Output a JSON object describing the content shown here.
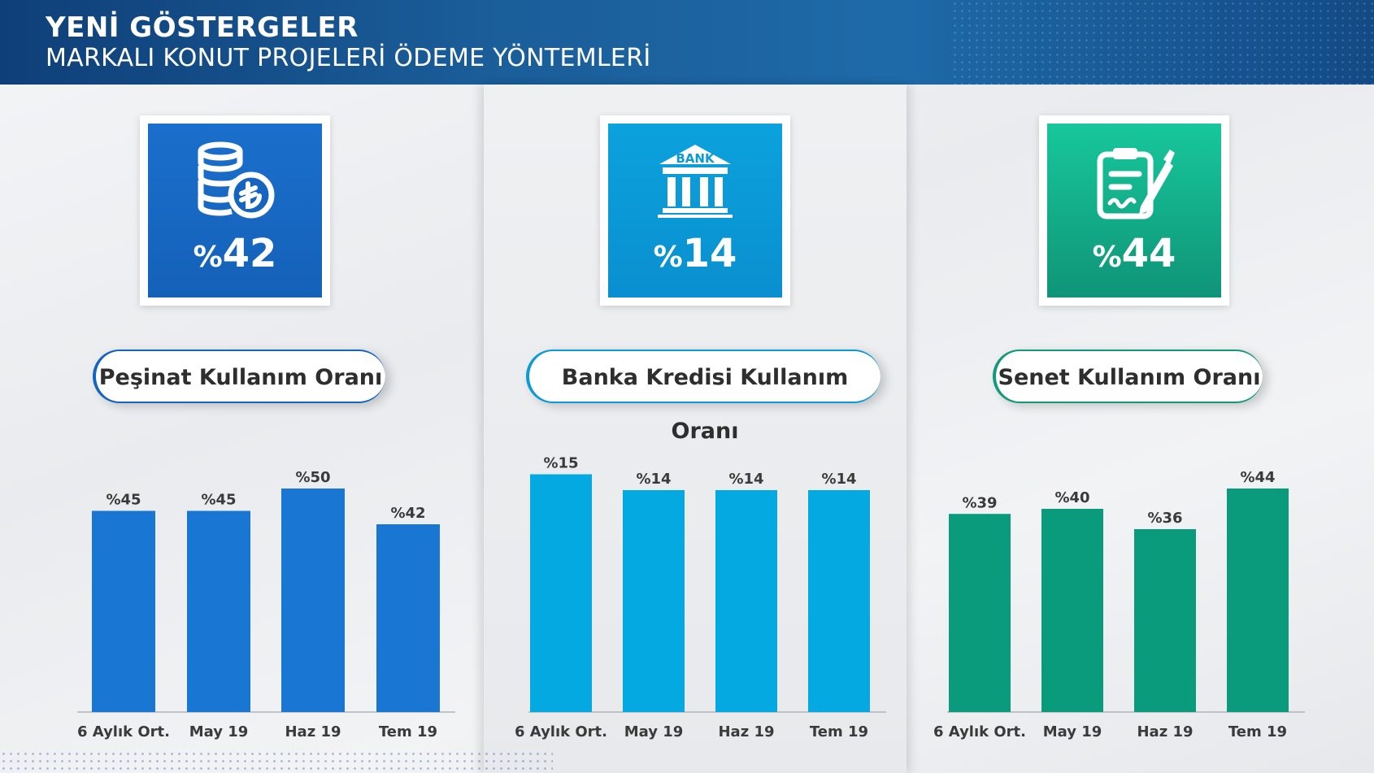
{
  "header": {
    "title": "YENİ GÖSTERGELER",
    "subtitle": "MARKALI KONUT PROJELERİ ÖDEME YÖNTEMLERİ"
  },
  "panels": [
    {
      "card": {
        "icon": "coins-lira-icon",
        "pct_symbol": "%",
        "pct_value": "42",
        "color": "#1565c0"
      },
      "pill_label": "Peşinat Kullanım Oranı",
      "pill_border": "#1565c0"
    },
    {
      "card": {
        "icon": "bank-building-icon",
        "icon_text": "BANK",
        "pct_symbol": "%",
        "pct_value": "14",
        "color": "#0a9ad6"
      },
      "pill_label": "Banka Kredisi Kullanım Oranı",
      "pill_border": "#0a9ad6"
    },
    {
      "card": {
        "icon": "contract-document-icon",
        "pct_symbol": "%",
        "pct_value": "44",
        "color": "#14a884"
      },
      "pill_label": "Senet Kullanım Oranı",
      "pill_border": "#12997a"
    }
  ],
  "chart_data": [
    {
      "type": "bar",
      "categories": [
        "6 Aylık Ort.",
        "May 19",
        "Haz 19",
        "Tem 19"
      ],
      "values": [
        45,
        45,
        50,
        42
      ],
      "data_labels": [
        "%45",
        "%45",
        "%50",
        "%42"
      ],
      "color": "#1976d2",
      "title": "Peşinat Kullanım Oranı"
    },
    {
      "type": "bar",
      "categories": [
        "6 Aylık Ort.",
        "May 19",
        "Haz 19",
        "Tem 19"
      ],
      "values": [
        15,
        14,
        14,
        14
      ],
      "data_labels": [
        "%15",
        "%14",
        "%14",
        "%14"
      ],
      "color": "#03a9e0",
      "title": "Banka Kredisi Kullanım Oranı"
    },
    {
      "type": "bar",
      "categories": [
        "6 Aylık Ort.",
        "May 19",
        "Haz 19",
        "Tem 19"
      ],
      "values": [
        39,
        40,
        36,
        44
      ],
      "data_labels": [
        "%39",
        "%40",
        "%36",
        "%44"
      ],
      "color": "#0a9a7c",
      "title": "Senet Kullanım Oranı"
    }
  ]
}
